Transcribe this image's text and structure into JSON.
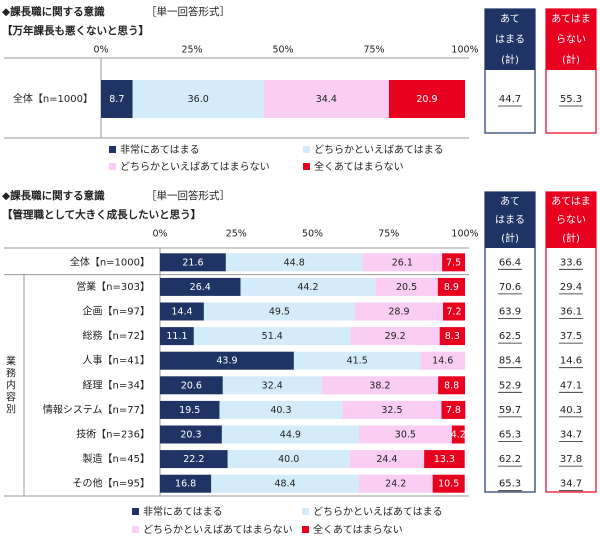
{
  "colors": {
    "very_applicable": "#1f3464",
    "somewhat_applicable": "#d4ecfa",
    "somewhat_not_applicable": "#f9cdf4",
    "not_applicable": "#e8001f",
    "applies_box_border": "#1f3464",
    "not_applies_box_border": "#e8001f",
    "applies_header_bg": "#1f3464",
    "not_applies_header_bg": "#e8001f"
  },
  "legend": {
    "very_applicable": "非常にあてはまる",
    "somewhat_applicable": "どちらかといえばあてはまる",
    "somewhat_not_applicable": "どちらかといえばあてはまらない",
    "not_applicable": "全くあてはまらない"
  },
  "summary_headers": {
    "applies": [
      "あて",
      "はまる",
      "(計)"
    ],
    "not_applies": [
      "あてはま",
      "らない",
      "(計)"
    ]
  },
  "chart_data": [
    {
      "type": "bar",
      "title": "◆課長職に関する意識",
      "format_label": "［単一回答形式］",
      "subtitle": "【万年課長も悪くないと思う】",
      "ticks": [
        "0%",
        "25%",
        "50%",
        "75%",
        "100%"
      ],
      "xlim": [
        0,
        100
      ],
      "categories": [
        "全体【n=1000】"
      ],
      "series": [
        {
          "name": "非常にあてはまる",
          "values": [
            8.7
          ]
        },
        {
          "name": "どちらかといえばあてはまる",
          "values": [
            36.0
          ]
        },
        {
          "name": "どちらかといえばあてはまらない",
          "values": [
            34.4
          ]
        },
        {
          "name": "全くあてはまらない",
          "values": [
            20.9
          ]
        }
      ],
      "applies_total": [
        "44.7"
      ],
      "not_applies_total": [
        "55.3"
      ]
    },
    {
      "type": "bar",
      "title": "◆課長職に関する意識",
      "format_label": "［単一回答形式］",
      "subtitle": "【管理職として大きく成長したいと思う】",
      "ticks": [
        "0%",
        "25%",
        "50%",
        "75%",
        "100%"
      ],
      "xlim": [
        0,
        100
      ],
      "group_label": "業務内容別",
      "categories": [
        "全体【n=1000】",
        "営業【n=303】",
        "企画【n=97】",
        "総務【n=72】",
        "人事【n=41】",
        "経理【n=34】",
        "情報システム【n=77】",
        "技術【n=236】",
        "製造【n=45】",
        "その他【n=95】"
      ],
      "series": [
        {
          "name": "非常にあてはまる",
          "values": [
            21.6,
            26.4,
            14.4,
            11.1,
            43.9,
            20.6,
            19.5,
            20.3,
            22.2,
            16.8
          ]
        },
        {
          "name": "どちらかといえばあてはまる",
          "values": [
            44.8,
            44.2,
            49.5,
            51.4,
            41.5,
            32.4,
            40.3,
            44.9,
            40.0,
            48.4
          ]
        },
        {
          "name": "どちらかといえばあてはまらない",
          "values": [
            26.1,
            20.5,
            28.9,
            29.2,
            14.6,
            38.2,
            32.5,
            30.5,
            24.4,
            24.2
          ]
        },
        {
          "name": "全くあてはまらない",
          "values": [
            7.5,
            8.9,
            7.2,
            8.3,
            0.0,
            8.8,
            7.8,
            4.2,
            13.3,
            10.5
          ]
        }
      ],
      "applies_total": [
        "66.4",
        "70.6",
        "63.9",
        "62.5",
        "85.4",
        "52.9",
        "59.7",
        "65.3",
        "62.2",
        "65.3"
      ],
      "not_applies_total": [
        "33.6",
        "29.4",
        "36.1",
        "37.5",
        "14.6",
        "47.1",
        "40.3",
        "34.7",
        "37.8",
        "34.7"
      ]
    }
  ]
}
